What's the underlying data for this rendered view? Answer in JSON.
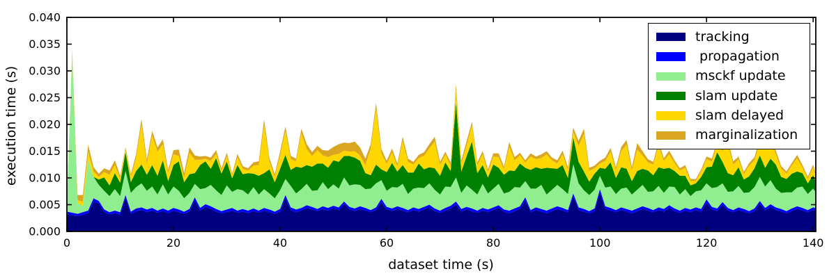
{
  "chart_data": {
    "type": "area",
    "stacked": true,
    "title": "",
    "xlabel": "dataset time (s)",
    "ylabel": "execution time (s)",
    "xlim": [
      0,
      140.5
    ],
    "ylim": [
      0,
      0.04
    ],
    "xticks": [
      0,
      20,
      40,
      60,
      80,
      100,
      120,
      140
    ],
    "yticks": [
      0,
      0.005,
      0.01,
      0.015,
      0.02,
      0.025,
      0.03,
      0.035,
      0.04
    ],
    "ytick_labels": [
      "0.000",
      "0.005",
      "0.010",
      "0.015",
      "0.020",
      "0.025",
      "0.030",
      "0.035",
      "0.040"
    ],
    "grid": false,
    "background": "#ffffff",
    "frame_color": "#000000",
    "legend": {
      "position": "upper right",
      "border_color": "#000000",
      "background": "#ffffff"
    },
    "value_unit": "ms",
    "value_scale_to_axis": 0.001,
    "x": {
      "start": 0,
      "step": 1,
      "count": 142,
      "unit": "s"
    },
    "series": [
      {
        "name": "tracking",
        "color": "#000080",
        "values_ms": [
          3.2,
          3.0,
          2.9,
          3.1,
          3.4,
          5.6,
          5.2,
          3.6,
          3.2,
          3.4,
          3.1,
          6.3,
          3.3,
          3.8,
          4.0,
          3.6,
          3.9,
          3.5,
          3.8,
          3.4,
          3.9,
          3.6,
          3.3,
          3.7,
          5.8,
          3.9,
          4.6,
          4.2,
          3.7,
          3.4,
          3.6,
          3.9,
          3.5,
          3.7,
          3.4,
          3.8,
          3.5,
          3.9,
          3.6,
          3.3,
          3.7,
          6.2,
          4.0,
          3.6,
          3.9,
          4.4,
          4.1,
          3.8,
          4.2,
          3.9,
          4.3,
          4.0,
          5.2,
          4.1,
          3.8,
          4.2,
          3.9,
          3.6,
          4.0,
          5.5,
          4.1,
          3.8,
          4.2,
          3.9,
          3.6,
          4.0,
          3.7,
          4.1,
          4.5,
          3.8,
          3.5,
          3.9,
          4.3,
          5.0,
          3.7,
          4.1,
          3.8,
          3.5,
          3.9,
          3.6,
          4.0,
          4.4,
          3.7,
          3.4,
          3.8,
          4.2,
          5.8,
          3.6,
          4.0,
          3.7,
          3.4,
          3.8,
          4.2,
          3.9,
          3.6,
          6.5,
          4.0,
          3.7,
          3.4,
          3.8,
          7.2,
          4.2,
          3.9,
          3.6,
          4.0,
          3.7,
          3.4,
          3.8,
          4.2,
          3.9,
          3.6,
          4.0,
          3.7,
          4.4,
          3.8,
          3.5,
          3.9,
          3.6,
          4.0,
          3.7,
          5.4,
          4.1,
          3.8,
          5.0,
          3.9,
          3.6,
          4.0,
          3.7,
          3.4,
          3.8,
          5.2,
          3.9,
          4.6,
          4.0,
          3.7,
          3.4,
          3.8,
          4.2,
          3.9,
          3.6,
          4.0,
          3.7
        ]
      },
      {
        "name": " propagation",
        "color": "#0000ff",
        "values_ms": [
          0.5,
          0.5,
          0.4,
          0.5,
          0.5,
          0.6,
          0.5,
          0.5,
          0.4,
          0.5,
          0.5,
          0.5,
          0.4,
          0.5,
          0.5,
          0.5,
          0.5,
          0.4,
          0.5,
          0.5,
          0.5,
          0.5,
          0.4,
          0.5,
          0.6,
          0.5,
          0.5,
          0.5,
          0.5,
          0.4,
          0.5,
          0.5,
          0.4,
          0.5,
          0.5,
          0.5,
          0.4,
          0.5,
          0.5,
          0.4,
          0.5,
          0.6,
          0.5,
          0.5,
          0.5,
          0.5,
          0.5,
          0.4,
          0.5,
          0.5,
          0.5,
          0.5,
          0.4,
          0.5,
          0.5,
          0.5,
          0.5,
          0.4,
          0.5,
          0.6,
          0.5,
          0.5,
          0.5,
          0.5,
          0.4,
          0.5,
          0.5,
          0.5,
          0.5,
          0.5,
          0.4,
          0.5,
          0.5,
          0.6,
          0.5,
          0.5,
          0.5,
          0.4,
          0.5,
          0.5,
          0.5,
          0.5,
          0.4,
          0.5,
          0.5,
          0.5,
          0.6,
          0.4,
          0.5,
          0.5,
          0.5,
          0.5,
          0.5,
          0.5,
          0.4,
          0.6,
          0.5,
          0.5,
          0.4,
          0.5,
          0.7,
          0.5,
          0.5,
          0.4,
          0.5,
          0.5,
          0.5,
          0.5,
          0.5,
          0.5,
          0.4,
          0.5,
          0.5,
          0.5,
          0.5,
          0.4,
          0.5,
          0.5,
          0.5,
          0.5,
          0.6,
          0.5,
          0.5,
          0.5,
          0.5,
          0.4,
          0.5,
          0.5,
          0.4,
          0.5,
          0.5,
          0.5,
          0.5,
          0.5,
          0.5,
          0.4,
          0.5,
          0.5,
          0.5,
          0.4,
          0.5,
          0.5
        ]
      },
      {
        "name": "msckf update",
        "color": "#90ee90",
        "values_ms": [
          1.0,
          30.0,
          2.0,
          1.2,
          9.5,
          4.0,
          3.0,
          3.5,
          3.0,
          4.0,
          3.0,
          4.5,
          3.5,
          4.0,
          4.5,
          3.5,
          4.0,
          3.0,
          4.5,
          3.0,
          4.0,
          3.5,
          2.5,
          3.0,
          2.5,
          3.5,
          3.0,
          4.0,
          3.5,
          3.0,
          4.5,
          3.0,
          4.0,
          3.5,
          3.0,
          4.0,
          3.0,
          3.5,
          3.0,
          2.5,
          3.5,
          3.0,
          4.0,
          3.0,
          3.5,
          4.0,
          3.0,
          3.5,
          4.5,
          3.5,
          4.0,
          3.5,
          4.5,
          4.0,
          4.5,
          4.0,
          3.5,
          4.0,
          4.5,
          3.5,
          3.0,
          4.0,
          3.5,
          4.5,
          3.0,
          3.5,
          4.0,
          3.5,
          4.0,
          3.5,
          3.0,
          4.0,
          3.5,
          4.5,
          3.0,
          4.0,
          3.5,
          3.0,
          4.5,
          3.0,
          3.5,
          4.0,
          3.0,
          3.5,
          4.0,
          3.5,
          3.0,
          4.0,
          3.5,
          4.5,
          3.0,
          3.5,
          4.0,
          3.5,
          3.0,
          5.5,
          4.5,
          3.5,
          3.0,
          3.5,
          2.5,
          3.5,
          4.0,
          3.0,
          3.5,
          4.0,
          3.0,
          3.5,
          4.0,
          3.0,
          3.5,
          4.0,
          3.0,
          3.5,
          4.0,
          3.0,
          3.5,
          2.5,
          3.0,
          3.5,
          3.0,
          3.5,
          4.0,
          3.5,
          3.0,
          3.5,
          4.0,
          3.0,
          3.5,
          4.0,
          4.5,
          4.0,
          4.5,
          3.5,
          3.0,
          3.5,
          3.0,
          3.5,
          4.0,
          3.0,
          3.5,
          2.5
        ]
      },
      {
        "name": "slam update",
        "color": "#008000",
        "values_ms": [
          0,
          0,
          0,
          0,
          0,
          0,
          1.0,
          2.5,
          2.0,
          3.0,
          2.5,
          3.5,
          2.0,
          3.0,
          3.5,
          3.0,
          4.0,
          3.5,
          4.5,
          2.5,
          4.0,
          5.5,
          3.0,
          3.5,
          2.0,
          4.5,
          5.0,
          3.0,
          6.0,
          4.0,
          4.5,
          2.5,
          4.5,
          3.0,
          4.0,
          2.5,
          3.5,
          3.0,
          4.5,
          3.0,
          4.0,
          4.5,
          3.0,
          5.0,
          4.0,
          3.5,
          4.5,
          5.0,
          3.5,
          4.0,
          4.5,
          5.0,
          4.0,
          5.5,
          5.0,
          4.5,
          3.0,
          2.5,
          3.5,
          2.0,
          3.5,
          4.5,
          3.0,
          3.5,
          4.0,
          3.0,
          4.5,
          3.5,
          3.0,
          4.0,
          3.5,
          4.5,
          3.0,
          14.0,
          4.0,
          5.5,
          9.0,
          4.0,
          3.5,
          3.0,
          4.5,
          3.0,
          3.5,
          4.0,
          3.0,
          4.5,
          2.5,
          3.5,
          4.0,
          3.0,
          5.0,
          4.0,
          3.0,
          4.5,
          3.0,
          5.0,
          4.0,
          3.5,
          2.5,
          3.0,
          1.5,
          3.5,
          4.5,
          3.0,
          4.0,
          3.5,
          2.5,
          3.5,
          3.0,
          4.0,
          3.0,
          3.5,
          4.5,
          3.5,
          3.0,
          3.5,
          2.5,
          2.0,
          1.5,
          2.5,
          3.0,
          4.0,
          6.5,
          4.0,
          3.5,
          3.0,
          3.5,
          2.5,
          3.0,
          3.5,
          4.0,
          3.5,
          4.0,
          4.5,
          3.0,
          2.5,
          3.5,
          3.0,
          2.5,
          2.0,
          2.5,
          1.5
        ]
      },
      {
        "name": "slam delayed",
        "color": "#ffd700",
        "values_ms": [
          0,
          0,
          0.5,
          0.8,
          1.5,
          1.0,
          0.5,
          1.0,
          2.0,
          1.5,
          0.8,
          0.5,
          1.0,
          2.5,
          7.5,
          2.0,
          5.5,
          4.5,
          3.0,
          1.5,
          2.0,
          1.0,
          0.8,
          4.0,
          2.5,
          1.0,
          0.5,
          1.5,
          0.8,
          0.5,
          1.0,
          0.5,
          1.5,
          1.0,
          0.5,
          1.5,
          2.0,
          9.0,
          1.5,
          1.0,
          2.5,
          4.5,
          2.0,
          1.0,
          6.5,
          3.0,
          2.0,
          2.5,
          1.5,
          2.0,
          1.0,
          1.5,
          1.0,
          0.8,
          1.2,
          1.0,
          1.5,
          5.0,
          10.5,
          3.0,
          1.5,
          2.0,
          1.0,
          4.5,
          2.0,
          1.5,
          1.0,
          2.5,
          3.5,
          5.0,
          2.0,
          1.5,
          1.0,
          2.5,
          1.5,
          2.0,
          3.0,
          1.5,
          2.0,
          1.0,
          1.5,
          2.0,
          1.0,
          4.5,
          2.0,
          1.5,
          1.0,
          2.5,
          1.5,
          2.0,
          2.5,
          1.5,
          1.0,
          2.0,
          1.5,
          1.0,
          3.0,
          7.0,
          2.0,
          1.0,
          0.8,
          1.5,
          2.0,
          1.5,
          3.0,
          4.5,
          2.0,
          4.0,
          2.5,
          1.5,
          2.0,
          4.0,
          1.5,
          2.5,
          1.5,
          1.0,
          1.5,
          0.8,
          0.5,
          1.0,
          1.5,
          1.0,
          1.5,
          2.0,
          5.5,
          2.0,
          1.5,
          1.0,
          2.0,
          1.5,
          2.5,
          6.5,
          3.0,
          2.0,
          1.5,
          1.0,
          1.5,
          2.5,
          1.0,
          0.8,
          1.5,
          0.5
        ]
      },
      {
        "name": "marginalization",
        "color": "#daa520",
        "values_ms": [
          0.3,
          0.5,
          1.0,
          1.2,
          1.3,
          0.8,
          0.6,
          0.7,
          0.8,
          0.9,
          0.5,
          0.4,
          0.5,
          0.7,
          1.0,
          0.8,
          0.9,
          0.8,
          0.9,
          0.6,
          0.8,
          1.2,
          0.9,
          1.0,
          0.8,
          0.6,
          0.5,
          0.6,
          0.7,
          0.5,
          0.6,
          0.4,
          0.6,
          0.5,
          0.4,
          0.6,
          0.7,
          1.0,
          0.6,
          0.5,
          0.7,
          0.8,
          0.6,
          0.5,
          0.8,
          0.9,
          0.7,
          0.8,
          1.0,
          1.2,
          1.5,
          1.8,
          1.5,
          1.6,
          1.8,
          1.5,
          1.2,
          0.8,
          1.0,
          0.8,
          0.6,
          0.7,
          0.5,
          0.8,
          0.6,
          0.5,
          0.6,
          0.7,
          0.8,
          0.9,
          0.6,
          0.5,
          0.6,
          0.9,
          0.6,
          0.8,
          0.7,
          0.5,
          0.6,
          0.5,
          0.6,
          0.7,
          0.5,
          0.8,
          0.6,
          0.5,
          0.4,
          0.6,
          0.5,
          0.7,
          0.6,
          0.5,
          0.6,
          0.7,
          0.5,
          0.8,
          0.9,
          1.0,
          0.6,
          0.5,
          0.5,
          0.6,
          0.7,
          0.5,
          0.8,
          0.9,
          0.6,
          1.2,
          0.8,
          0.6,
          0.5,
          0.7,
          0.5,
          0.7,
          0.5,
          0.4,
          0.5,
          0.4,
          0.3,
          0.4,
          0.5,
          0.5,
          0.6,
          0.7,
          0.8,
          0.6,
          0.5,
          0.4,
          0.5,
          0.6,
          0.7,
          0.9,
          0.8,
          0.6,
          0.5,
          0.4,
          0.5,
          0.6,
          0.5,
          0.4,
          0.5,
          0.4
        ]
      }
    ]
  }
}
